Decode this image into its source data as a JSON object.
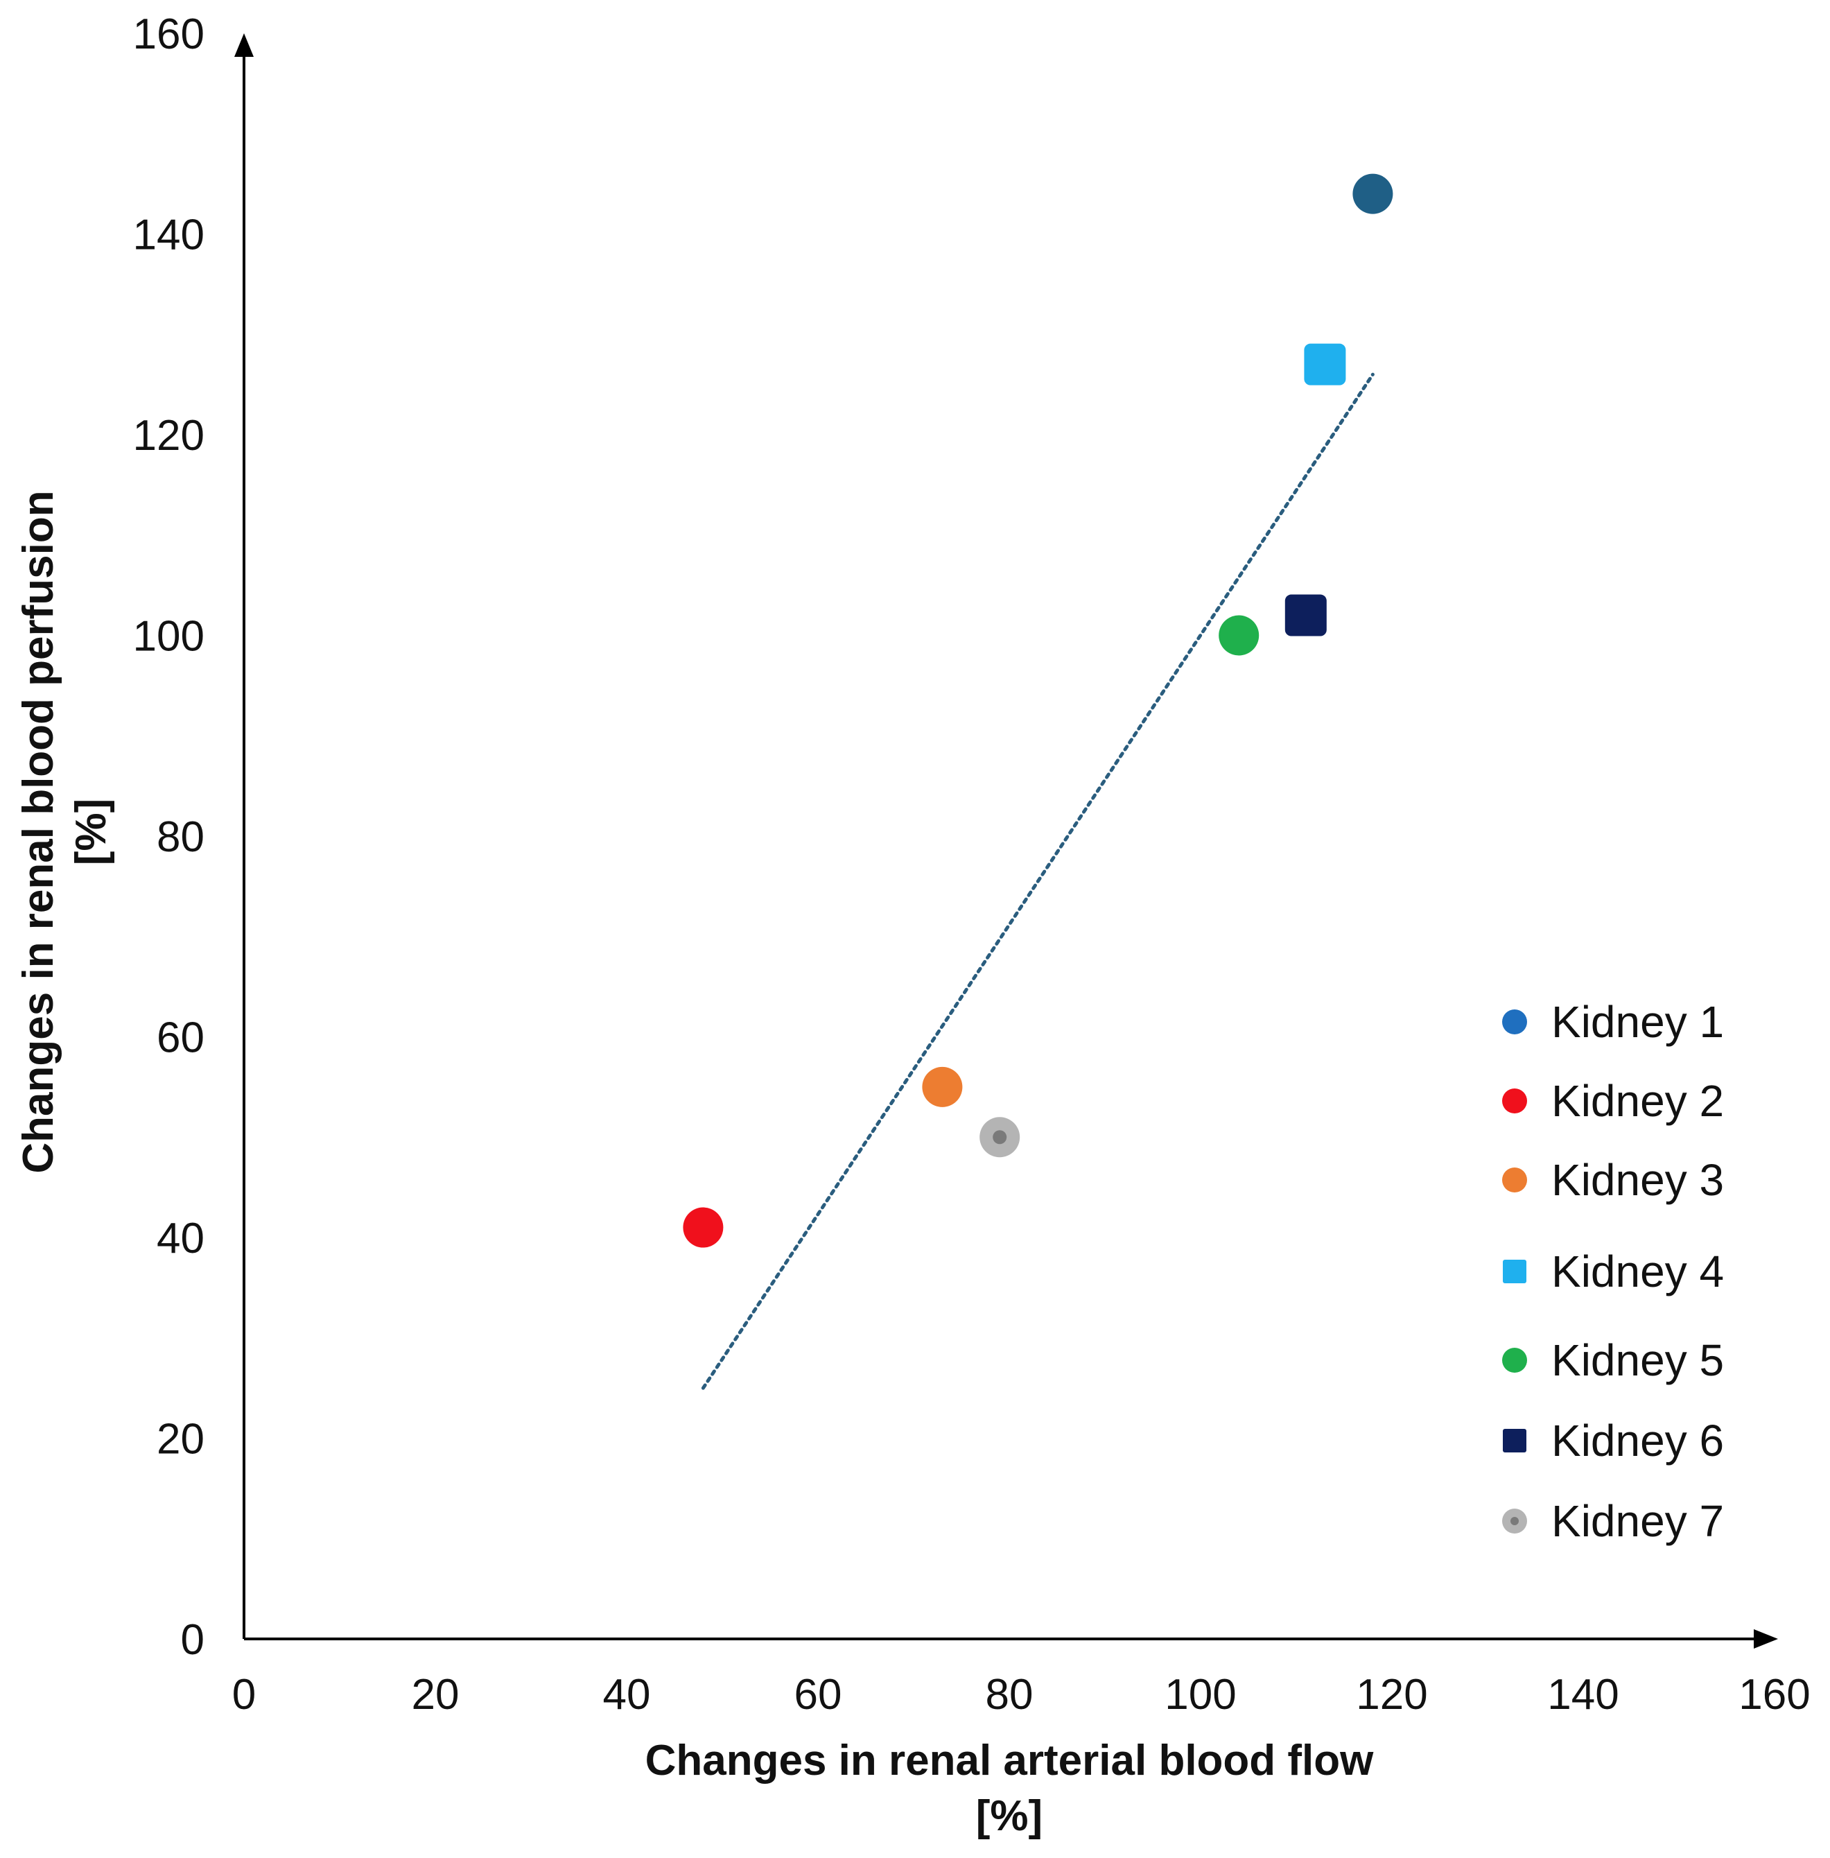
{
  "chart_data": {
    "type": "scatter",
    "title": "",
    "xlabel": "Changes in renal arterial blood flow",
    "xlabel_unit": "[%]",
    "ylabel": "Changes in renal blood perfusion",
    "ylabel_unit": "[%]",
    "xlim": [
      0,
      160
    ],
    "ylim": [
      0,
      160
    ],
    "x_ticks": [
      "0",
      "20",
      "40",
      "60",
      "80",
      "100",
      "120",
      "140",
      "160"
    ],
    "y_ticks": [
      "0",
      "20",
      "40",
      "60",
      "80",
      "100",
      "120",
      "140",
      "160"
    ],
    "grid": false,
    "legend_position": "right",
    "series": [
      {
        "name": "Kidney 1",
        "x": 118,
        "y": 144,
        "marker": "circle",
        "color": "#1f5f86",
        "legend_color": "#1f6fbf"
      },
      {
        "name": "Kidney 2",
        "x": 48,
        "y": 41,
        "marker": "circle",
        "color": "#f0101c",
        "legend_color": "#f0101c"
      },
      {
        "name": "Kidney 3",
        "x": 73,
        "y": 55,
        "marker": "circle",
        "color": "#ed7d31",
        "legend_color": "#ed7d31"
      },
      {
        "name": "Kidney 4",
        "x": 113,
        "y": 127,
        "marker": "square",
        "color": "#1fb0ee",
        "legend_color": "#1fb0ee"
      },
      {
        "name": "Kidney 5",
        "x": 104,
        "y": 100,
        "marker": "circle",
        "color": "#1fb04c",
        "legend_color": "#1fb04c"
      },
      {
        "name": "Kidney 6",
        "x": 111,
        "y": 102,
        "marker": "square",
        "color": "#0d1f5c",
        "legend_color": "#0d1f5c"
      },
      {
        "name": "Kidney 7",
        "x": 79,
        "y": 50,
        "marker": "dotted-circle",
        "color": "#b4b4b4",
        "legend_color": "#b4b4b4"
      }
    ],
    "trendline": {
      "style": "dotted",
      "color": "#2a5d7e",
      "x": [
        48,
        118
      ],
      "y": [
        25,
        126
      ]
    }
  }
}
